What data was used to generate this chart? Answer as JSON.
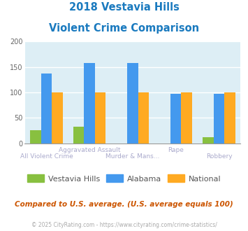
{
  "title_line1": "2018 Vestavia Hills",
  "title_line2": "Violent Crime Comparison",
  "title_color": "#1a7abf",
  "categories": [
    "All Violent Crime",
    "Aggravated Assault",
    "Murder & Mans...",
    "Rape",
    "Robbery"
  ],
  "top_xlabels": [
    "",
    "Aggravated Assault",
    "",
    "Rape",
    ""
  ],
  "bot_xlabels": [
    "All Violent Crime",
    "",
    "Murder & Mans...",
    "",
    "Robbery"
  ],
  "top_label_color": "#aaaacc",
  "bot_label_color": "#aaaacc",
  "vestavia_values": [
    25,
    33,
    0,
    0,
    12
  ],
  "alabama_values": [
    137,
    158,
    158,
    97,
    97
  ],
  "national_values": [
    100,
    100,
    100,
    100,
    100
  ],
  "vestavia_color": "#88c040",
  "alabama_color": "#4499ee",
  "national_color": "#ffaa22",
  "ylim": [
    0,
    200
  ],
  "yticks": [
    0,
    50,
    100,
    150,
    200
  ],
  "plot_bg_color": "#ddeef5",
  "grid_color": "#ffffff",
  "footer_text": "Compared to U.S. average. (U.S. average equals 100)",
  "footer_color": "#cc5500",
  "copyright_text": "© 2025 CityRating.com - https://www.cityrating.com/crime-statistics/",
  "copyright_color": "#aaaaaa",
  "legend_labels": [
    "Vestavia Hills",
    "Alabama",
    "National"
  ],
  "legend_color": "#555555",
  "bar_width": 0.25
}
